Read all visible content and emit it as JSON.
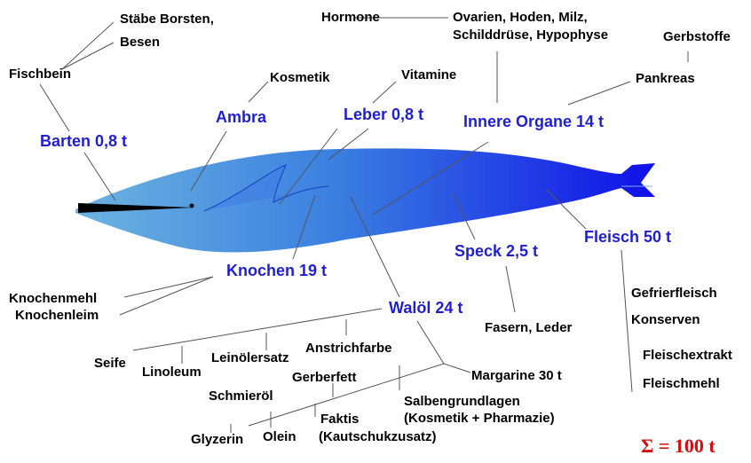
{
  "parts": [
    "Ambra",
    "Leber 0,8 t",
    "Innere Organe 14 t",
    "Barten 0,8 t",
    "Fleisch 50 t",
    "Speck 2,5 t",
    "Knochen 19 t",
    "Walöl 24 t"
  ],
  "products": [
    "Stäbe Borsten,",
    "Besen",
    "Fischbein",
    "Hormone",
    "Ovarien, Hoden, Milz,",
    "Schilddrüse, Hypophyse",
    "Gerbstoffe",
    "Pankreas",
    "Kosmetik",
    "Vitamine",
    "Knochenmehl",
    "Knochenleim",
    "Fasern, Leder",
    "Gefrierfleisch",
    "Konserven",
    "Fleischextrakt",
    "Fleischmehl",
    "Anstrichfarbe",
    "Seife",
    "Leinölersatz",
    "Linoleum",
    "Margarine 30 t",
    "Gerberfett",
    "Schmieröl",
    "Salbengrundlagen",
    "(Kosmetik + Pharmazie)",
    "Faktis",
    "(Kautschukzusatz)",
    "Glyzerin",
    "Olein"
  ],
  "total": "Σ = 100 t"
}
